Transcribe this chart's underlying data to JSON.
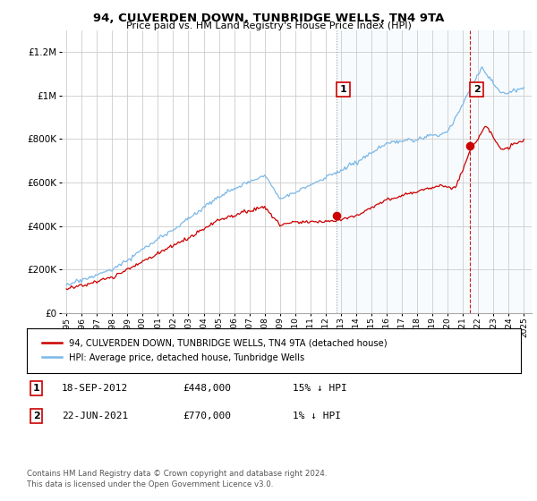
{
  "title": "94, CULVERDEN DOWN, TUNBRIDGE WELLS, TN4 9TA",
  "subtitle": "Price paid vs. HM Land Registry's House Price Index (HPI)",
  "ylim": [
    0,
    1300000
  ],
  "yticks": [
    0,
    200000,
    400000,
    600000,
    800000,
    1000000,
    1200000
  ],
  "x_start_year": 1995,
  "x_end_year": 2025,
  "hpi_color": "#7ab8e8",
  "hpi_fill_color": "#d6eaf8",
  "price_color": "#cc0000",
  "marker_color": "#cc0000",
  "vline1_color": "#999999",
  "vline2_color": "#cc0000",
  "annotation_box_color": "#cc0000",
  "background_color": "#ffffff",
  "grid_color": "#cccccc",
  "legend_label_price": "94, CULVERDEN DOWN, TUNBRIDGE WELLS, TN4 9TA (detached house)",
  "legend_label_hpi": "HPI: Average price, detached house, Tunbridge Wells",
  "transaction1_label": "1",
  "transaction1_date": "18-SEP-2012",
  "transaction1_price": "£448,000",
  "transaction1_hpi": "15% ↓ HPI",
  "transaction1_year": 2012.72,
  "transaction1_value": 448000,
  "transaction2_label": "2",
  "transaction2_date": "22-JUN-2021",
  "transaction2_price": "£770,000",
  "transaction2_hpi": "1% ↓ HPI",
  "transaction2_year": 2021.47,
  "transaction2_value": 770000,
  "footer": "Contains HM Land Registry data © Crown copyright and database right 2024.\nThis data is licensed under the Open Government Licence v3.0."
}
